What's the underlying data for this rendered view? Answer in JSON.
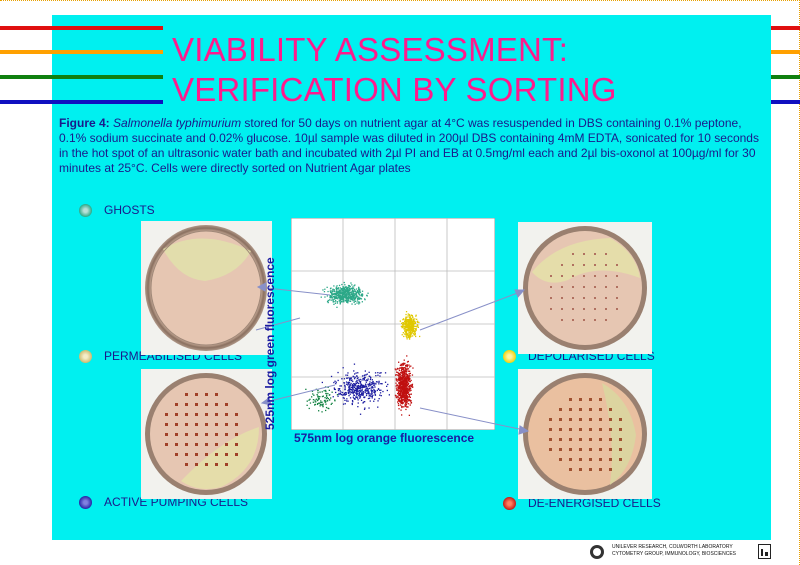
{
  "title": {
    "line1": "VIABILITY ASSESSMENT:",
    "line2": "VERIFICATION BY SORTING"
  },
  "caption": {
    "label": "Figure 4:",
    "organism": "Salmonella typhimurium",
    "text": " stored for  50 days on nutrient agar at 4°C was resuspended in DBS containing 0.1% peptone, 0.1% sodium succinate and 0.02% glucose. 10µl sample was diluted in 200µl DBS containing 4mM EDTA,  sonicated for 10 seconds in the hot spot of an ultrasonic water bath and incubated with 2µl PI and EB at 0.5mg/ml each and 2µl bis-oxonol at 100µg/ml for 30 minutes at 25°C. Cells were directly sorted on Nutrient Agar plates"
  },
  "legend": {
    "ghosts": "GHOSTS",
    "permeabilised": "PERMEABILISED CELLS",
    "active_pumping": "ACTIVE PUMPING CELLS",
    "depolarised": "DEPOLARISED CELLS",
    "de_energised": "DE-ENERGISED CELLS"
  },
  "plot": {
    "ylabel": "525nm log green fluorescence",
    "xlabel": "575nm log orange fluorescence"
  },
  "footer": {
    "line1": "UNILEVER RESEARCH,  COLWORTH LABORATORY",
    "line2": "CYTOMETRY GROUP, IMMUNOLOGY, BIOSCIENCES"
  },
  "colors": {
    "panel": "#00f0f0",
    "title": "#ff1a8c",
    "caption": "#1a1a8a",
    "stripe_red": "#e01010",
    "stripe_orange": "#ffa000",
    "stripe_green": "#108010",
    "stripe_blue": "#1010c0",
    "ghosts": "#2ca888",
    "permeabilised": "#d8c870",
    "active_pumping": "#1c1ca0",
    "depolarised": "#f0d000",
    "de_energised": "#c01010"
  }
}
